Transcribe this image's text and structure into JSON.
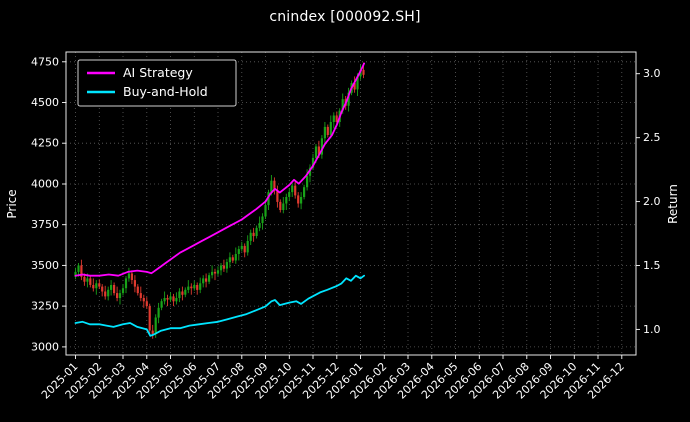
{
  "colors": {
    "background": "#000000",
    "grid": "#5f5f5f",
    "spine": "#e8e8e8",
    "text": "#ffffff",
    "candle_up": "#19a319",
    "candle_down": "#e03a2f",
    "legend_border": "#cfcfcf"
  },
  "chart_data": {
    "type": "candlestick+line",
    "title": "cnindex [000092.SH]",
    "xlabel": "",
    "grid": true,
    "left_axis": {
      "label": "Price",
      "ticks": [
        3000,
        3250,
        3500,
        3750,
        4000,
        4250,
        4500,
        4750
      ],
      "range": [
        2950,
        4810
      ]
    },
    "right_axis": {
      "label": "Return",
      "ticks": [
        1.0,
        1.5,
        2.0,
        2.5,
        3.0
      ],
      "range": [
        0.8,
        3.17
      ]
    },
    "x_tick_labels": [
      "2025-01",
      "2025-02",
      "2025-03",
      "2025-04",
      "2025-05",
      "2025-06",
      "2025-07",
      "2025-08",
      "2025-09",
      "2025-10",
      "2025-11",
      "2025-12",
      "2026-01",
      "2026-02",
      "2026-03",
      "2026-04",
      "2026-05",
      "2026-06",
      "2026-07",
      "2026-08",
      "2026-09",
      "2026-10",
      "2026-11",
      "2026-12"
    ],
    "x_range_months": [
      -0.4,
      23.6
    ],
    "legend": {
      "position": "upper-left",
      "entries": [
        "AI Strategy",
        "Buy-and-Hold"
      ]
    },
    "candles_format": [
      "month_index",
      "open",
      "high",
      "low",
      "close"
    ],
    "candles": [
      [
        0,
        3430,
        3485,
        3415,
        3460
      ],
      [
        0.125,
        3460,
        3515,
        3430,
        3500
      ],
      [
        0.25,
        3500,
        3535,
        3410,
        3430
      ],
      [
        0.375,
        3430,
        3450,
        3375,
        3400
      ],
      [
        0.5,
        3400,
        3450,
        3365,
        3420
      ],
      [
        0.625,
        3420,
        3435,
        3365,
        3380
      ],
      [
        0.75,
        3380,
        3420,
        3340,
        3360
      ],
      [
        0.875,
        3360,
        3410,
        3320,
        3390
      ],
      [
        1,
        3390,
        3415,
        3355,
        3370
      ],
      [
        1.125,
        3370,
        3385,
        3310,
        3340
      ],
      [
        1.25,
        3340,
        3375,
        3290,
        3310
      ],
      [
        1.375,
        3310,
        3370,
        3285,
        3350
      ],
      [
        1.5,
        3350,
        3410,
        3315,
        3380
      ],
      [
        1.625,
        3380,
        3395,
        3315,
        3330
      ],
      [
        1.75,
        3330,
        3370,
        3280,
        3300
      ],
      [
        1.875,
        3300,
        3350,
        3260,
        3330
      ],
      [
        2,
        3330,
        3385,
        3315,
        3360
      ],
      [
        2.125,
        3360,
        3435,
        3330,
        3420
      ],
      [
        2.25,
        3420,
        3485,
        3400,
        3450
      ],
      [
        2.375,
        3450,
        3470,
        3385,
        3410
      ],
      [
        2.5,
        3410,
        3440,
        3335,
        3370
      ],
      [
        2.625,
        3370,
        3385,
        3315,
        3330
      ],
      [
        2.75,
        3330,
        3370,
        3280,
        3300
      ],
      [
        2.875,
        3300,
        3320,
        3240,
        3280
      ],
      [
        3,
        3280,
        3305,
        3235,
        3250
      ],
      [
        3.125,
        3250,
        3265,
        3070,
        3100
      ],
      [
        3.25,
        3100,
        3135,
        3050,
        3080
      ],
      [
        3.375,
        3080,
        3200,
        3055,
        3180
      ],
      [
        3.5,
        3180,
        3270,
        3145,
        3240
      ],
      [
        3.625,
        3240,
        3295,
        3225,
        3280
      ],
      [
        3.75,
        3280,
        3340,
        3260,
        3300
      ],
      [
        3.875,
        3300,
        3320,
        3250,
        3290
      ],
      [
        4,
        3290,
        3335,
        3275,
        3310
      ],
      [
        4.125,
        3310,
        3325,
        3250,
        3280
      ],
      [
        4.25,
        3280,
        3335,
        3260,
        3300
      ],
      [
        4.375,
        3300,
        3360,
        3275,
        3340
      ],
      [
        4.5,
        3340,
        3370,
        3285,
        3320
      ],
      [
        4.625,
        3320,
        3365,
        3305,
        3350
      ],
      [
        4.75,
        3350,
        3410,
        3330,
        3370
      ],
      [
        4.875,
        3370,
        3390,
        3320,
        3360
      ],
      [
        5,
        3360,
        3405,
        3345,
        3380
      ],
      [
        5.125,
        3380,
        3395,
        3320,
        3350
      ],
      [
        5.25,
        3350,
        3425,
        3330,
        3390
      ],
      [
        5.375,
        3390,
        3440,
        3365,
        3420
      ],
      [
        5.5,
        3420,
        3450,
        3365,
        3400
      ],
      [
        5.625,
        3400,
        3455,
        3385,
        3440
      ],
      [
        5.75,
        3440,
        3500,
        3420,
        3460
      ],
      [
        5.875,
        3460,
        3480,
        3410,
        3450
      ],
      [
        6,
        3450,
        3495,
        3435,
        3470
      ],
      [
        6.125,
        3470,
        3515,
        3440,
        3500
      ],
      [
        6.25,
        3500,
        3535,
        3460,
        3480
      ],
      [
        6.375,
        3480,
        3540,
        3455,
        3520
      ],
      [
        6.5,
        3520,
        3580,
        3485,
        3550
      ],
      [
        6.625,
        3550,
        3565,
        3515,
        3530
      ],
      [
        6.75,
        3530,
        3610,
        3510,
        3570
      ],
      [
        6.875,
        3570,
        3620,
        3530,
        3600
      ],
      [
        7,
        3600,
        3645,
        3585,
        3620
      ],
      [
        7.125,
        3620,
        3635,
        3550,
        3580
      ],
      [
        7.25,
        3580,
        3685,
        3560,
        3650
      ],
      [
        7.375,
        3650,
        3720,
        3625,
        3700
      ],
      [
        7.5,
        3700,
        3730,
        3645,
        3680
      ],
      [
        7.625,
        3680,
        3745,
        3665,
        3730
      ],
      [
        7.75,
        3730,
        3800,
        3710,
        3760
      ],
      [
        7.875,
        3760,
        3820,
        3720,
        3800
      ],
      [
        8,
        3800,
        3895,
        3785,
        3870
      ],
      [
        8.125,
        3870,
        3965,
        3840,
        3950
      ],
      [
        8.25,
        3950,
        4055,
        3930,
        4020
      ],
      [
        8.375,
        4020,
        4040,
        3935,
        3960
      ],
      [
        8.5,
        3960,
        3990,
        3855,
        3890
      ],
      [
        8.625,
        3890,
        3905,
        3825,
        3840
      ],
      [
        8.75,
        3840,
        3920,
        3820,
        3880
      ],
      [
        8.875,
        3880,
        3940,
        3840,
        3920
      ],
      [
        9,
        3920,
        3975,
        3895,
        3950
      ],
      [
        9.125,
        3950,
        4005,
        3920,
        3990
      ],
      [
        9.25,
        3990,
        4025,
        3910,
        3930
      ],
      [
        9.375,
        3930,
        3950,
        3855,
        3880
      ],
      [
        9.5,
        3880,
        3950,
        3845,
        3920
      ],
      [
        9.625,
        3920,
        3995,
        3905,
        3980
      ],
      [
        9.75,
        3980,
        4090,
        3960,
        4050
      ],
      [
        9.875,
        4050,
        4120,
        4010,
        4100
      ],
      [
        10,
        4100,
        4185,
        4085,
        4160
      ],
      [
        10.125,
        4160,
        4245,
        4130,
        4230
      ],
      [
        10.25,
        4230,
        4265,
        4160,
        4180
      ],
      [
        10.375,
        4180,
        4300,
        4155,
        4280
      ],
      [
        10.5,
        4280,
        4380,
        4245,
        4350
      ],
      [
        10.625,
        4350,
        4365,
        4285,
        4300
      ],
      [
        10.75,
        4300,
        4420,
        4280,
        4380
      ],
      [
        10.875,
        4380,
        4440,
        4340,
        4420
      ],
      [
        11,
        4420,
        4445,
        4365,
        4380
      ],
      [
        11.125,
        4380,
        4465,
        4350,
        4450
      ],
      [
        11.25,
        4450,
        4555,
        4430,
        4520
      ],
      [
        11.375,
        4520,
        4540,
        4455,
        4480
      ],
      [
        11.5,
        4480,
        4590,
        4445,
        4560
      ],
      [
        11.625,
        4560,
        4635,
        4545,
        4620
      ],
      [
        11.75,
        4620,
        4660,
        4560,
        4580
      ],
      [
        11.875,
        4580,
        4680,
        4540,
        4660
      ],
      [
        12,
        4660,
        4730,
        4640,
        4700
      ],
      [
        12.125,
        4700,
        4745,
        4650,
        4670
      ]
    ],
    "series": [
      {
        "name": "AI Strategy",
        "data_name": "ai-strategy-line",
        "color": "#ff00ff",
        "axis": "right",
        "points": [
          [
            0,
            1.42
          ],
          [
            0.3,
            1.43
          ],
          [
            0.6,
            1.42
          ],
          [
            1,
            1.42
          ],
          [
            1.4,
            1.43
          ],
          [
            1.8,
            1.42
          ],
          [
            2.2,
            1.45
          ],
          [
            2.6,
            1.46
          ],
          [
            3,
            1.45
          ],
          [
            3.2,
            1.44
          ],
          [
            3.5,
            1.48
          ],
          [
            3.8,
            1.52
          ],
          [
            4.1,
            1.56
          ],
          [
            4.4,
            1.6
          ],
          [
            4.7,
            1.63
          ],
          [
            5,
            1.66
          ],
          [
            5.3,
            1.69
          ],
          [
            5.6,
            1.72
          ],
          [
            6,
            1.76
          ],
          [
            6.3,
            1.79
          ],
          [
            6.6,
            1.82
          ],
          [
            7,
            1.86
          ],
          [
            7.3,
            1.9
          ],
          [
            7.6,
            1.94
          ],
          [
            8,
            2.0
          ],
          [
            8.2,
            2.06
          ],
          [
            8.4,
            2.1
          ],
          [
            8.6,
            2.07
          ],
          [
            8.8,
            2.1
          ],
          [
            9,
            2.13
          ],
          [
            9.2,
            2.17
          ],
          [
            9.4,
            2.14
          ],
          [
            9.7,
            2.2
          ],
          [
            10,
            2.28
          ],
          [
            10.3,
            2.38
          ],
          [
            10.5,
            2.45
          ],
          [
            10.8,
            2.52
          ],
          [
            11,
            2.6
          ],
          [
            11.2,
            2.7
          ],
          [
            11.4,
            2.78
          ],
          [
            11.6,
            2.88
          ],
          [
            11.8,
            2.95
          ],
          [
            12,
            3.02
          ],
          [
            12.15,
            3.08
          ]
        ]
      },
      {
        "name": "Buy-and-Hold",
        "data_name": "buy-and-hold-line",
        "color": "#00e5ff",
        "axis": "right",
        "points": [
          [
            0,
            1.05
          ],
          [
            0.3,
            1.06
          ],
          [
            0.6,
            1.04
          ],
          [
            1,
            1.04
          ],
          [
            1.3,
            1.03
          ],
          [
            1.6,
            1.02
          ],
          [
            2,
            1.04
          ],
          [
            2.3,
            1.05
          ],
          [
            2.6,
            1.02
          ],
          [
            3,
            1.0
          ],
          [
            3.15,
            0.95
          ],
          [
            3.3,
            0.96
          ],
          [
            3.6,
            0.99
          ],
          [
            4,
            1.01
          ],
          [
            4.4,
            1.01
          ],
          [
            4.8,
            1.03
          ],
          [
            5.2,
            1.04
          ],
          [
            5.6,
            1.05
          ],
          [
            6,
            1.06
          ],
          [
            6.4,
            1.08
          ],
          [
            6.8,
            1.1
          ],
          [
            7.2,
            1.12
          ],
          [
            7.6,
            1.15
          ],
          [
            8,
            1.18
          ],
          [
            8.25,
            1.22
          ],
          [
            8.4,
            1.23
          ],
          [
            8.6,
            1.19
          ],
          [
            8.8,
            1.2
          ],
          [
            9,
            1.21
          ],
          [
            9.3,
            1.22
          ],
          [
            9.5,
            1.2
          ],
          [
            9.8,
            1.24
          ],
          [
            10,
            1.26
          ],
          [
            10.3,
            1.29
          ],
          [
            10.6,
            1.31
          ],
          [
            11,
            1.34
          ],
          [
            11.2,
            1.36
          ],
          [
            11.4,
            1.4
          ],
          [
            11.6,
            1.38
          ],
          [
            11.8,
            1.42
          ],
          [
            12,
            1.4
          ],
          [
            12.15,
            1.42
          ]
        ]
      }
    ]
  }
}
